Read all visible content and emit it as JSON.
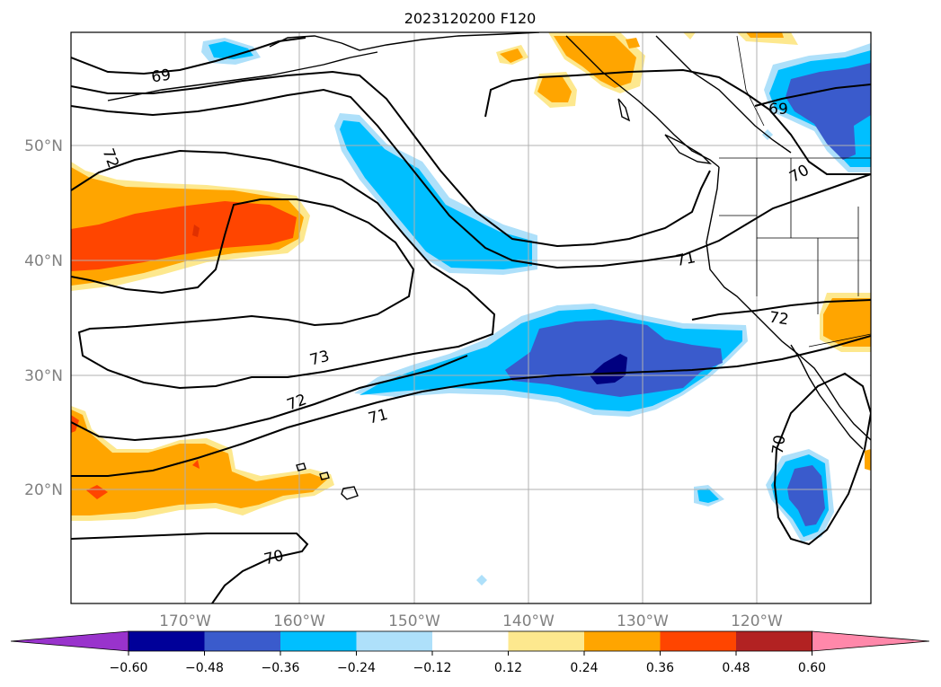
{
  "title": "2023120200 F120",
  "map": {
    "lat_labels": [
      "50°N",
      "40°N",
      "30°N",
      "20°N"
    ],
    "lon_labels": [
      "170°W",
      "160°W",
      "150°W",
      "140°W",
      "130°W",
      "120°W"
    ],
    "contour_labels": [
      "69",
      "69",
      "72",
      "70",
      "71",
      "72",
      "73",
      "72",
      "71",
      "70",
      "70"
    ],
    "gridlines": true
  },
  "colorbar": {
    "tick_labels": [
      "−0.60",
      "−0.48",
      "−0.36",
      "−0.24",
      "−0.12",
      "0.12",
      "0.24",
      "0.36",
      "0.48",
      "0.60"
    ],
    "colors": {
      "under": "#9933cc",
      "levels": [
        "#000099",
        "#3a5bcc",
        "#00bfff",
        "#aee0fa",
        "#ffffff",
        "#fde88e",
        "#ffa500",
        "#ff4500",
        "#b22222"
      ],
      "over": "#ff88aa"
    }
  },
  "colors": {
    "orange": "#ffa500",
    "red_orange": "#ff4500",
    "dark_red": "#e03000",
    "yellow": "#fde88e",
    "light_blue": "#aee0fa",
    "cyan": "#00bfff",
    "blue": "#3a5bcc",
    "navy": "#000080",
    "contour": "#000000",
    "grid": "#b0b0b0"
  }
}
